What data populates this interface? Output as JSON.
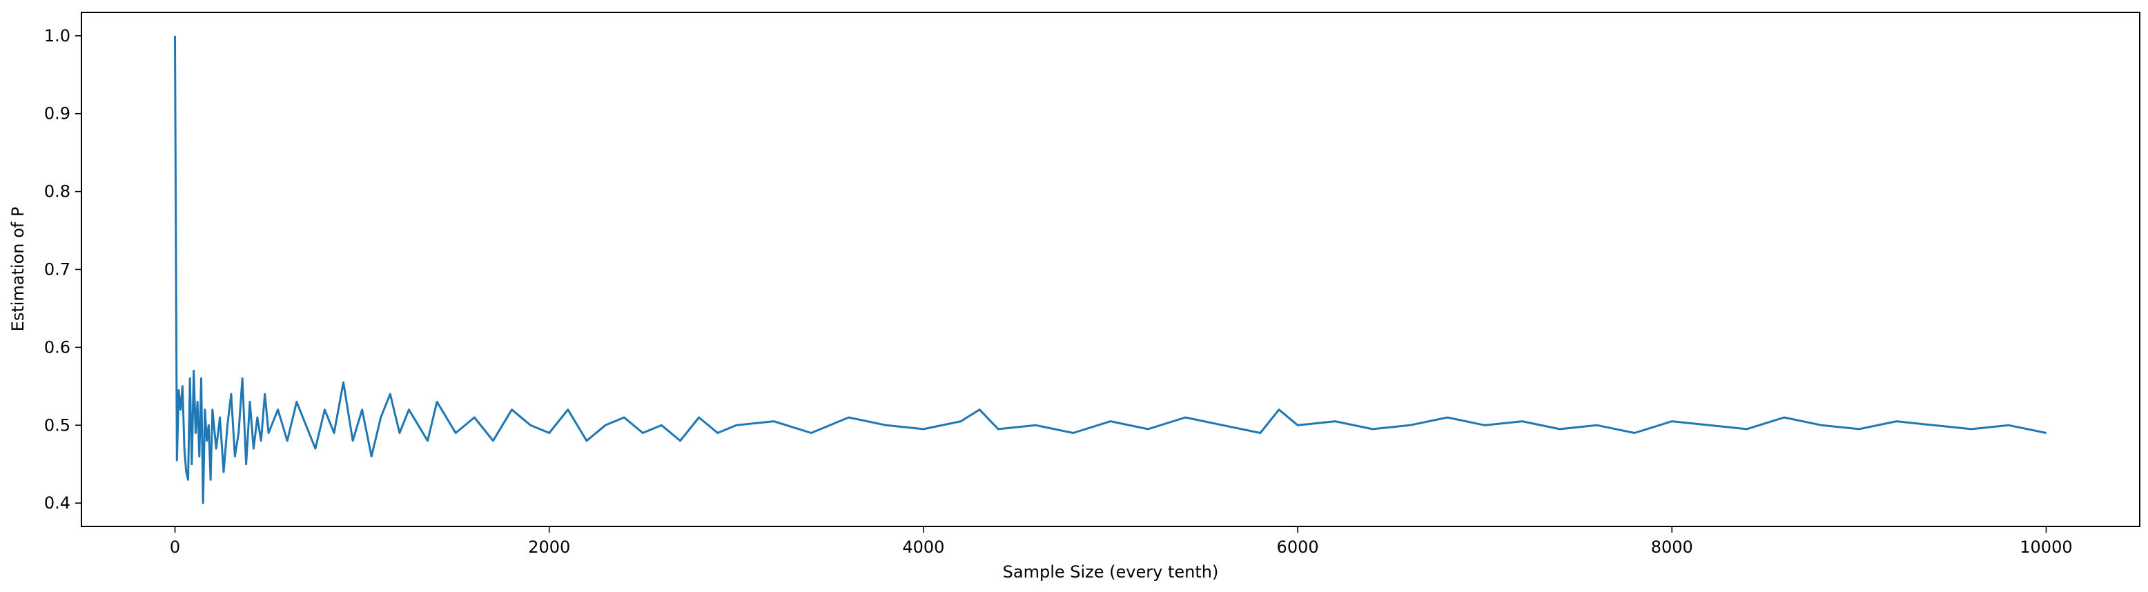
{
  "chart_data": {
    "type": "line",
    "title": "",
    "xlabel": "Sample Size (every tenth)",
    "ylabel": "Estimation of P",
    "xlim": [
      -500,
      10500
    ],
    "ylim": [
      0.37,
      1.03
    ],
    "xticks": [
      0,
      2000,
      4000,
      6000,
      8000,
      10000
    ],
    "xtick_labels": [
      "0",
      "2000",
      "4000",
      "6000",
      "8000",
      "10000"
    ],
    "yticks": [
      0.4,
      0.5,
      0.6,
      0.7,
      0.8,
      0.9,
      1.0
    ],
    "ytick_labels": [
      "0.4",
      "0.5",
      "0.6",
      "0.7",
      "0.8",
      "0.9",
      "1.0"
    ],
    "grid": false,
    "legend": "none",
    "series": [
      {
        "color": "#1f77b4",
        "x": [
          0,
          10,
          20,
          30,
          40,
          50,
          60,
          70,
          80,
          90,
          100,
          110,
          120,
          130,
          140,
          150,
          160,
          170,
          180,
          190,
          200,
          220,
          240,
          260,
          280,
          300,
          320,
          340,
          360,
          380,
          400,
          420,
          440,
          460,
          480,
          500,
          550,
          600,
          650,
          700,
          750,
          800,
          850,
          900,
          950,
          1000,
          1050,
          1100,
          1150,
          1200,
          1250,
          1300,
          1350,
          1400,
          1500,
          1600,
          1700,
          1800,
          1900,
          2000,
          2100,
          2200,
          2300,
          2400,
          2500,
          2600,
          2700,
          2800,
          2900,
          3000,
          3200,
          3400,
          3600,
          3800,
          4000,
          4200,
          4300,
          4400,
          4600,
          4800,
          5000,
          5200,
          5400,
          5600,
          5800,
          5900,
          6000,
          6200,
          6400,
          6600,
          6800,
          7000,
          7200,
          7400,
          7600,
          7800,
          8000,
          8200,
          8400,
          8600,
          8800,
          9000,
          9200,
          9400,
          9600,
          9800,
          10000
        ],
        "y": [
          1.0,
          0.455,
          0.545,
          0.52,
          0.55,
          0.47,
          0.44,
          0.43,
          0.56,
          0.45,
          0.57,
          0.49,
          0.53,
          0.46,
          0.56,
          0.4,
          0.52,
          0.48,
          0.5,
          0.43,
          0.52,
          0.47,
          0.51,
          0.44,
          0.5,
          0.54,
          0.46,
          0.49,
          0.56,
          0.45,
          0.53,
          0.47,
          0.51,
          0.48,
          0.54,
          0.49,
          0.52,
          0.48,
          0.53,
          0.5,
          0.47,
          0.52,
          0.49,
          0.555,
          0.48,
          0.52,
          0.46,
          0.51,
          0.54,
          0.49,
          0.52,
          0.5,
          0.48,
          0.53,
          0.49,
          0.51,
          0.48,
          0.52,
          0.5,
          0.49,
          0.52,
          0.48,
          0.5,
          0.51,
          0.49,
          0.5,
          0.48,
          0.51,
          0.49,
          0.5,
          0.505,
          0.49,
          0.51,
          0.5,
          0.495,
          0.505,
          0.52,
          0.495,
          0.5,
          0.49,
          0.505,
          0.495,
          0.51,
          0.5,
          0.49,
          0.52,
          0.5,
          0.505,
          0.495,
          0.5,
          0.51,
          0.5,
          0.505,
          0.495,
          0.5,
          0.49,
          0.505,
          0.5,
          0.495,
          0.51,
          0.5,
          0.495,
          0.505,
          0.5,
          0.495,
          0.5,
          0.49
        ]
      }
    ]
  }
}
